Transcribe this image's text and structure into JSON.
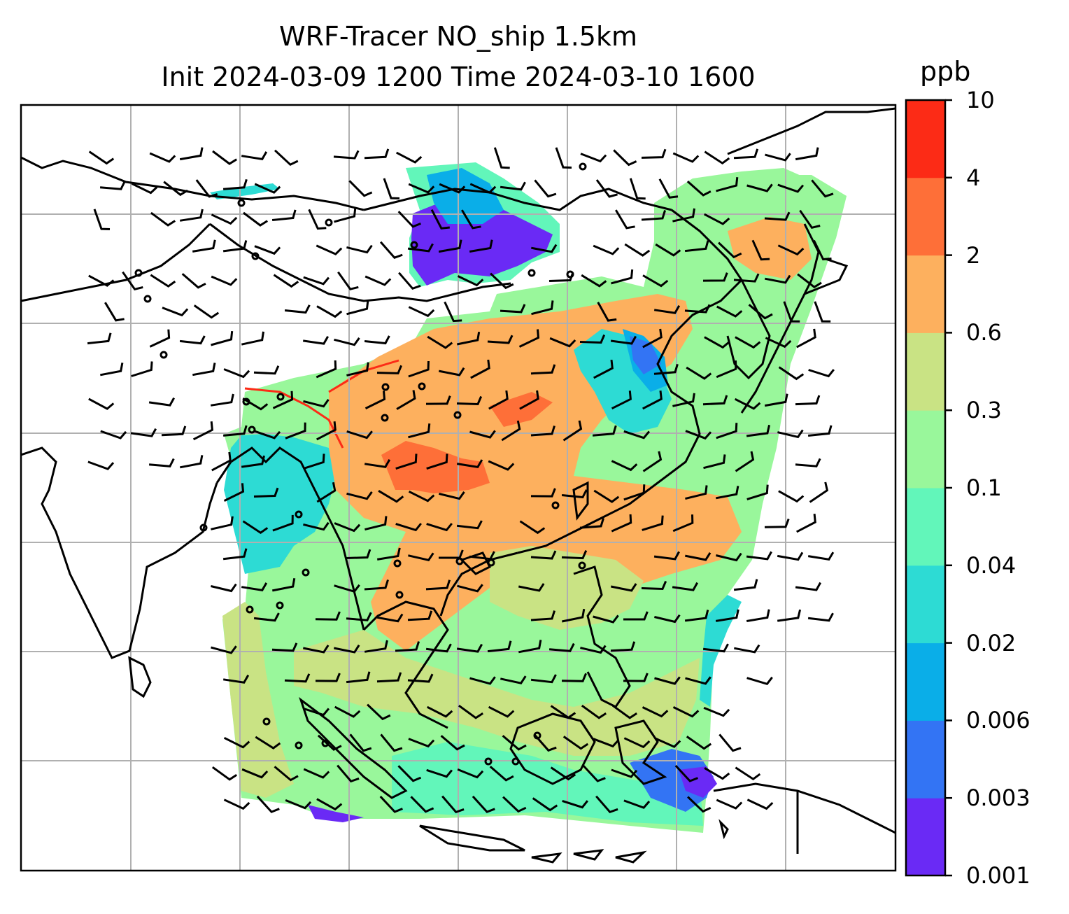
{
  "title": {
    "line1": "WRF-Tracer NO_ship 1.5km",
    "line2": "Init 2024-03-09 1200 Time 2024-03-10 1600"
  },
  "colorbar": {
    "unit": "ppb",
    "levels": [
      "0.001",
      "0.003",
      "0.006",
      "0.02",
      "0.04",
      "0.1",
      "0.3",
      "0.6",
      "2",
      "4",
      "10"
    ],
    "colors": [
      "#6a2af5",
      "#3374f4",
      "#0aaee8",
      "#2ddbd4",
      "#62f6ba",
      "#99f79b",
      "#c9e384",
      "#fdb05e",
      "#fe6f38",
      "#fc2b16"
    ]
  },
  "colors": {
    "land_outline": "#000000",
    "gridline": "#b0b0b0",
    "barb": "#000000"
  }
}
